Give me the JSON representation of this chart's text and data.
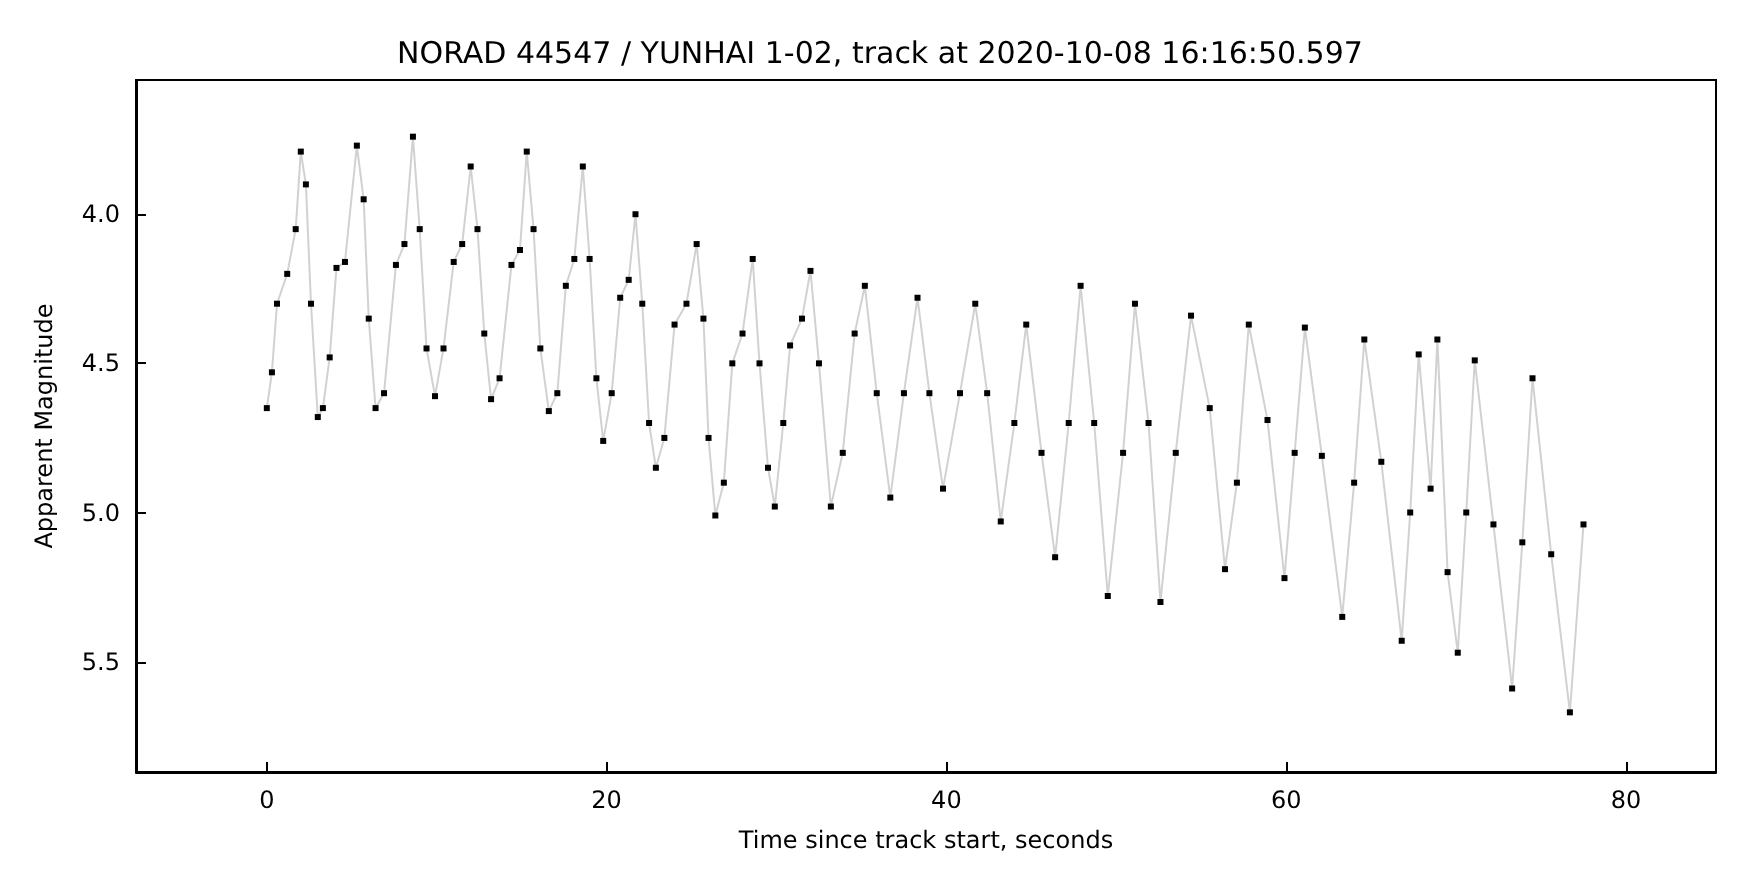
{
  "chart_data": {
    "type": "line",
    "title": "NORAD 44547 / YUNHAI 1-02, track at 2020-10-08 16:16:50.597",
    "xlabel": "Time since track start, seconds",
    "ylabel": "Apparent Magnitude",
    "xlim": [
      -7.7,
      85.3
    ],
    "ylim": [
      5.87,
      3.55
    ],
    "xticks": [
      0,
      20,
      40,
      60,
      80
    ],
    "yticks": [
      {
        "value": 4,
        "label": "4.0"
      },
      4.5,
      {
        "value": 5,
        "label": "5.0"
      },
      5.5
    ],
    "grid": false,
    "marker": "square",
    "series": [
      {
        "color": "#000000",
        "x": [
          0,
          0.3,
          0.6,
          1.2,
          1.7,
          2.0,
          2.3,
          2.6,
          3.0,
          3.3,
          3.7,
          4.1,
          4.6,
          5.3,
          5.7,
          6.0,
          6.4,
          6.9,
          7.6,
          8.1,
          8.6,
          9.0,
          9.4,
          9.9,
          10.4,
          11.0,
          11.5,
          12.0,
          12.4,
          12.8,
          13.2,
          13.7,
          14.4,
          14.9,
          15.3,
          15.7,
          16.1,
          16.6,
          17.1,
          17.6,
          18.1,
          18.6,
          19.0,
          19.4,
          19.8,
          20.3,
          20.8,
          21.3,
          21.7,
          22.1,
          22.5,
          22.9,
          23.4,
          24.0,
          24.7,
          25.3,
          25.7,
          26.0,
          26.4,
          26.9,
          27.4,
          28.0,
          28.6,
          29.0,
          29.5,
          29.9,
          30.4,
          30.8,
          31.5,
          32.0,
          32.5,
          33.2,
          33.9,
          34.6,
          35.2,
          35.9,
          36.7,
          37.5,
          38.3,
          39.0,
          39.8,
          40.8,
          41.7,
          42.4,
          43.2,
          44.0,
          44.7,
          45.6,
          46.4,
          47.2,
          47.9,
          48.7,
          49.5,
          50.4,
          51.1,
          51.9,
          52.6,
          53.5,
          54.4,
          55.5,
          56.4,
          57.1,
          57.8,
          58.9,
          59.9,
          60.5,
          61.1,
          62.1,
          63.3,
          64.0,
          64.6,
          65.6,
          66.8,
          67.3,
          67.8,
          68.5,
          68.9,
          69.5,
          70.1,
          70.6,
          71.1,
          72.2,
          73.3,
          73.9,
          74.5,
          75.6,
          76.7,
          77.5
        ],
        "values": [
          4.65,
          4.53,
          4.3,
          4.2,
          4.05,
          3.79,
          3.9,
          4.3,
          4.68,
          4.65,
          4.48,
          4.18,
          4.16,
          3.77,
          3.95,
          4.35,
          4.65,
          4.6,
          4.17,
          4.1,
          3.74,
          4.05,
          4.45,
          4.61,
          4.45,
          4.16,
          4.1,
          3.84,
          4.05,
          4.4,
          4.62,
          4.55,
          4.17,
          4.12,
          3.79,
          4.05,
          4.45,
          4.66,
          4.6,
          4.24,
          4.15,
          3.84,
          4.15,
          4.55,
          4.76,
          4.6,
          4.28,
          4.22,
          4.0,
          4.3,
          4.7,
          4.85,
          4.75,
          4.37,
          4.3,
          4.1,
          4.35,
          4.75,
          5.01,
          4.9,
          4.5,
          4.4,
          4.15,
          4.5,
          4.85,
          4.98,
          4.7,
          4.44,
          4.35,
          4.19,
          4.5,
          4.98,
          4.8,
          4.4,
          4.24,
          4.6,
          4.95,
          4.6,
          4.28,
          4.6,
          4.92,
          4.6,
          4.3,
          4.6,
          5.03,
          4.7,
          4.37,
          4.8,
          5.15,
          4.7,
          4.24,
          4.7,
          5.28,
          4.8,
          4.3,
          4.7,
          5.3,
          4.8,
          4.34,
          4.65,
          5.19,
          4.9,
          4.37,
          4.69,
          5.22,
          4.8,
          4.38,
          4.81,
          5.35,
          4.9,
          4.42,
          4.83,
          5.43,
          5.0,
          4.47,
          4.92,
          4.42,
          5.2,
          5.47,
          5.0,
          4.49,
          5.04,
          5.59,
          5.1,
          4.55,
          5.14,
          5.67,
          5.04
        ]
      }
    ]
  }
}
